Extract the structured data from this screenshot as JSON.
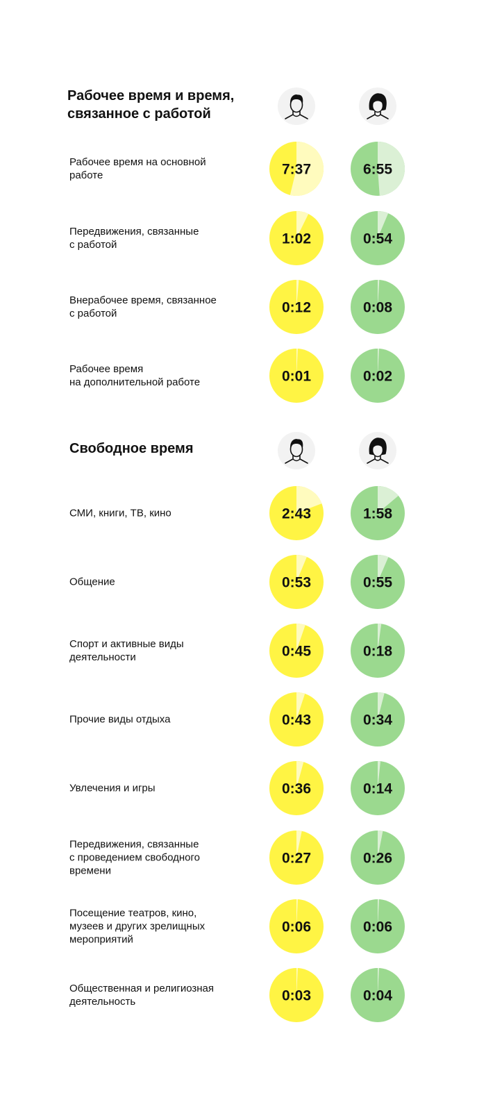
{
  "colors": {
    "men_fill": "#FFF444",
    "men_light": "#FFFBBE",
    "women_fill": "#9BD98F",
    "women_light": "#DBF0D5",
    "avatar_bg": "#F2F2F2",
    "avatar_ink": "#111111"
  },
  "icons": {
    "men": "man-icon",
    "women": "woman-icon"
  },
  "chart_data": [
    {
      "type": "pie",
      "title": "Рабочее время и время,\nсвязанное с работой",
      "series": [
        {
          "name": "",
          "gender": "men",
          "icon": "man-icon"
        },
        {
          "name": "",
          "gender": "women",
          "icon": "woman-icon"
        }
      ],
      "rows": [
        {
          "label": "Рабочее время на основной\nработе",
          "men": "7:37",
          "women": "6:55"
        },
        {
          "label": "Передвижения, связанные\nс работой",
          "men": "1:02",
          "women": "0:54"
        },
        {
          "label": "Внерабочее время, связанное\nс работой",
          "men": "0:12",
          "women": "0:08"
        },
        {
          "label": "Рабочее время\nна дополнительной работе",
          "men": "0:01",
          "women": "0:02"
        }
      ]
    },
    {
      "type": "pie",
      "title": "Свободное время",
      "series": [
        {
          "name": "",
          "gender": "men",
          "icon": "man-icon"
        },
        {
          "name": "",
          "gender": "women",
          "icon": "woman-icon"
        }
      ],
      "rows": [
        {
          "label": "СМИ, книги, ТВ, кино",
          "men": "2:43",
          "women": "1:58"
        },
        {
          "label": "Общение",
          "men": "0:53",
          "women": "0:55"
        },
        {
          "label": "Спорт и активные виды\nдеятельности",
          "men": "0:45",
          "women": "0:18"
        },
        {
          "label": "Прочие виды отдыха",
          "men": "0:43",
          "women": "0:34"
        },
        {
          "label": "Увлечения и игры",
          "men": "0:36",
          "women": "0:14"
        },
        {
          "label": "Передвижения, связанные\nс проведением свободного\nвремени",
          "men": "0:27",
          "women": "0:26"
        },
        {
          "label": "Посещение театров, кино,\nмузеев и других зрелищных\nмероприятий",
          "men": "0:06",
          "women": "0:06"
        },
        {
          "label": "Общественная и религиозная\nдеятельность",
          "men": "0:03",
          "women": "0:04"
        }
      ]
    }
  ]
}
